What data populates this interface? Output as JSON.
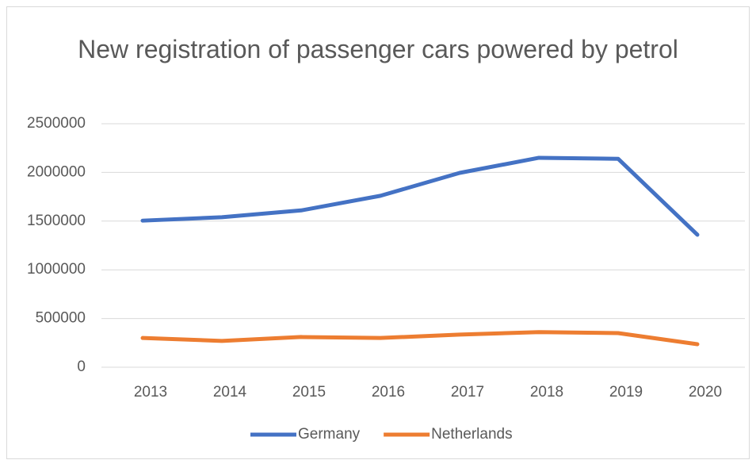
{
  "chart_data": {
    "type": "line",
    "title": "New registration of passenger cars powered by petrol",
    "categories": [
      "2013",
      "2014",
      "2015",
      "2016",
      "2017",
      "2018",
      "2019",
      "2020"
    ],
    "series": [
      {
        "name": "Germany",
        "color": "#4472c4",
        "values": [
          1505000,
          1540000,
          1610000,
          1760000,
          1995000,
          2150000,
          2140000,
          1360000
        ]
      },
      {
        "name": "Netherlands",
        "color": "#ed7d31",
        "values": [
          300000,
          270000,
          310000,
          300000,
          335000,
          360000,
          350000,
          236000
        ]
      }
    ],
    "ylim": [
      0,
      2500000
    ],
    "yticks": [
      0,
      500000,
      1000000,
      1500000,
      2000000,
      2500000
    ],
    "grid": true,
    "legend": "bottom"
  }
}
